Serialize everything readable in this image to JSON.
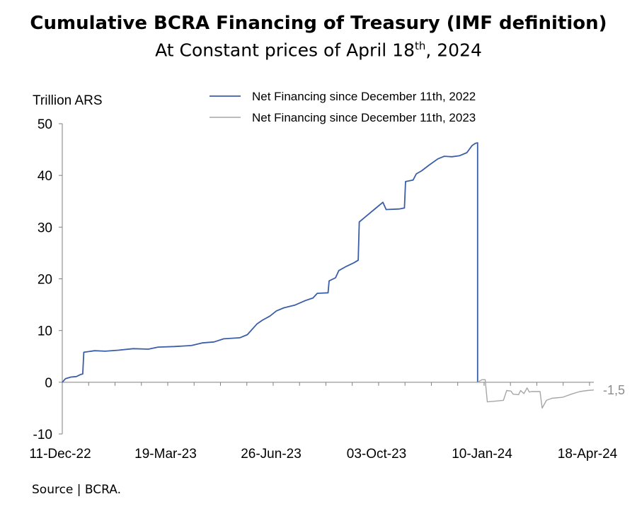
{
  "header": {
    "title": "Cumulative BCRA Financing of Treasury (IMF definition)",
    "subtitle_before": "At Constant prices of April 18",
    "subtitle_sup": "th",
    "subtitle_after": ", 2024"
  },
  "source": "Source | BCRA.",
  "colors": {
    "series_2022": "#3b5ea8",
    "series_2023": "#a6a6a6",
    "axis": "#7f7f7f"
  },
  "chart_data": {
    "type": "line",
    "ylabel": "Trillion ARS",
    "ylim": [
      -10,
      50
    ],
    "yticks": [
      -10,
      0,
      10,
      20,
      30,
      40,
      50
    ],
    "xticks": [
      "11-Dec-22",
      "19-Mar-23",
      "26-Jun-23",
      "03-Oct-23",
      "10-Jan-24",
      "18-Apr-24"
    ],
    "end_label": "-1,5",
    "legend": "top",
    "series": [
      {
        "name": "Net Financing since December 11th, 2022",
        "points": [
          [
            "2022-12-11",
            0
          ],
          [
            "2022-12-14",
            0.7
          ],
          [
            "2022-12-19",
            1.0
          ],
          [
            "2022-12-24",
            1.1
          ],
          [
            "2022-12-28",
            1.5
          ],
          [
            "2022-12-30",
            1.6
          ],
          [
            "2022-12-31",
            5.8
          ],
          [
            "2023-01-10",
            6.1
          ],
          [
            "2023-01-20",
            6.0
          ],
          [
            "2023-02-01",
            6.2
          ],
          [
            "2023-02-15",
            6.5
          ],
          [
            "2023-03-01",
            6.4
          ],
          [
            "2023-03-10",
            6.8
          ],
          [
            "2023-03-25",
            6.9
          ],
          [
            "2023-04-10",
            7.1
          ],
          [
            "2023-04-20",
            7.6
          ],
          [
            "2023-05-01",
            7.8
          ],
          [
            "2023-05-10",
            8.4
          ],
          [
            "2023-05-25",
            8.6
          ],
          [
            "2023-06-01",
            9.2
          ],
          [
            "2023-06-10",
            11.3
          ],
          [
            "2023-06-15",
            12.0
          ],
          [
            "2023-06-22",
            12.8
          ],
          [
            "2023-06-28",
            13.8
          ],
          [
            "2023-07-05",
            14.4
          ],
          [
            "2023-07-15",
            14.9
          ],
          [
            "2023-07-25",
            15.8
          ],
          [
            "2023-08-01",
            16.3
          ],
          [
            "2023-08-05",
            17.2
          ],
          [
            "2023-08-15",
            17.3
          ],
          [
            "2023-08-16",
            19.6
          ],
          [
            "2023-08-22",
            20.2
          ],
          [
            "2023-08-25",
            21.6
          ],
          [
            "2023-09-01",
            22.4
          ],
          [
            "2023-09-08",
            23.1
          ],
          [
            "2023-09-12",
            23.6
          ],
          [
            "2023-09-13",
            31.0
          ],
          [
            "2023-09-20",
            32.2
          ],
          [
            "2023-09-28",
            33.6
          ],
          [
            "2023-10-05",
            34.8
          ],
          [
            "2023-10-08",
            33.4
          ],
          [
            "2023-10-20",
            33.5
          ],
          [
            "2023-10-25",
            33.7
          ],
          [
            "2023-10-26",
            38.8
          ],
          [
            "2023-11-02",
            39.1
          ],
          [
            "2023-11-05",
            40.3
          ],
          [
            "2023-11-10",
            40.9
          ],
          [
            "2023-11-17",
            42.0
          ],
          [
            "2023-11-25",
            43.2
          ],
          [
            "2023-12-01",
            43.7
          ],
          [
            "2023-12-08",
            43.6
          ],
          [
            "2023-12-15",
            43.8
          ],
          [
            "2023-12-22",
            44.4
          ],
          [
            "2023-12-27",
            45.8
          ],
          [
            "2023-12-30",
            46.2
          ],
          [
            "2024-01-01",
            46.3
          ],
          [
            "2024-01-01",
            0
          ]
        ]
      },
      {
        "name": "Net Financing since December 11th, 2023",
        "points": [
          [
            "2024-01-01",
            0
          ],
          [
            "2024-01-05",
            0.5
          ],
          [
            "2024-01-08",
            0.5
          ],
          [
            "2024-01-10",
            -3.8
          ],
          [
            "2024-01-20",
            -3.6
          ],
          [
            "2024-01-25",
            -3.5
          ],
          [
            "2024-01-28",
            -1.6
          ],
          [
            "2024-02-01",
            -1.7
          ],
          [
            "2024-02-03",
            -2.3
          ],
          [
            "2024-02-08",
            -2.4
          ],
          [
            "2024-02-10",
            -1.6
          ],
          [
            "2024-02-13",
            -2.2
          ],
          [
            "2024-02-16",
            -1.1
          ],
          [
            "2024-02-18",
            -1.9
          ],
          [
            "2024-02-20",
            -1.8
          ],
          [
            "2024-02-28",
            -1.8
          ],
          [
            "2024-03-01",
            -5.0
          ],
          [
            "2024-03-05",
            -3.5
          ],
          [
            "2024-03-10",
            -3.1
          ],
          [
            "2024-03-20",
            -2.9
          ],
          [
            "2024-03-28",
            -2.3
          ],
          [
            "2024-04-05",
            -1.8
          ],
          [
            "2024-04-12",
            -1.6
          ],
          [
            "2024-04-18",
            -1.5
          ]
        ]
      }
    ]
  }
}
